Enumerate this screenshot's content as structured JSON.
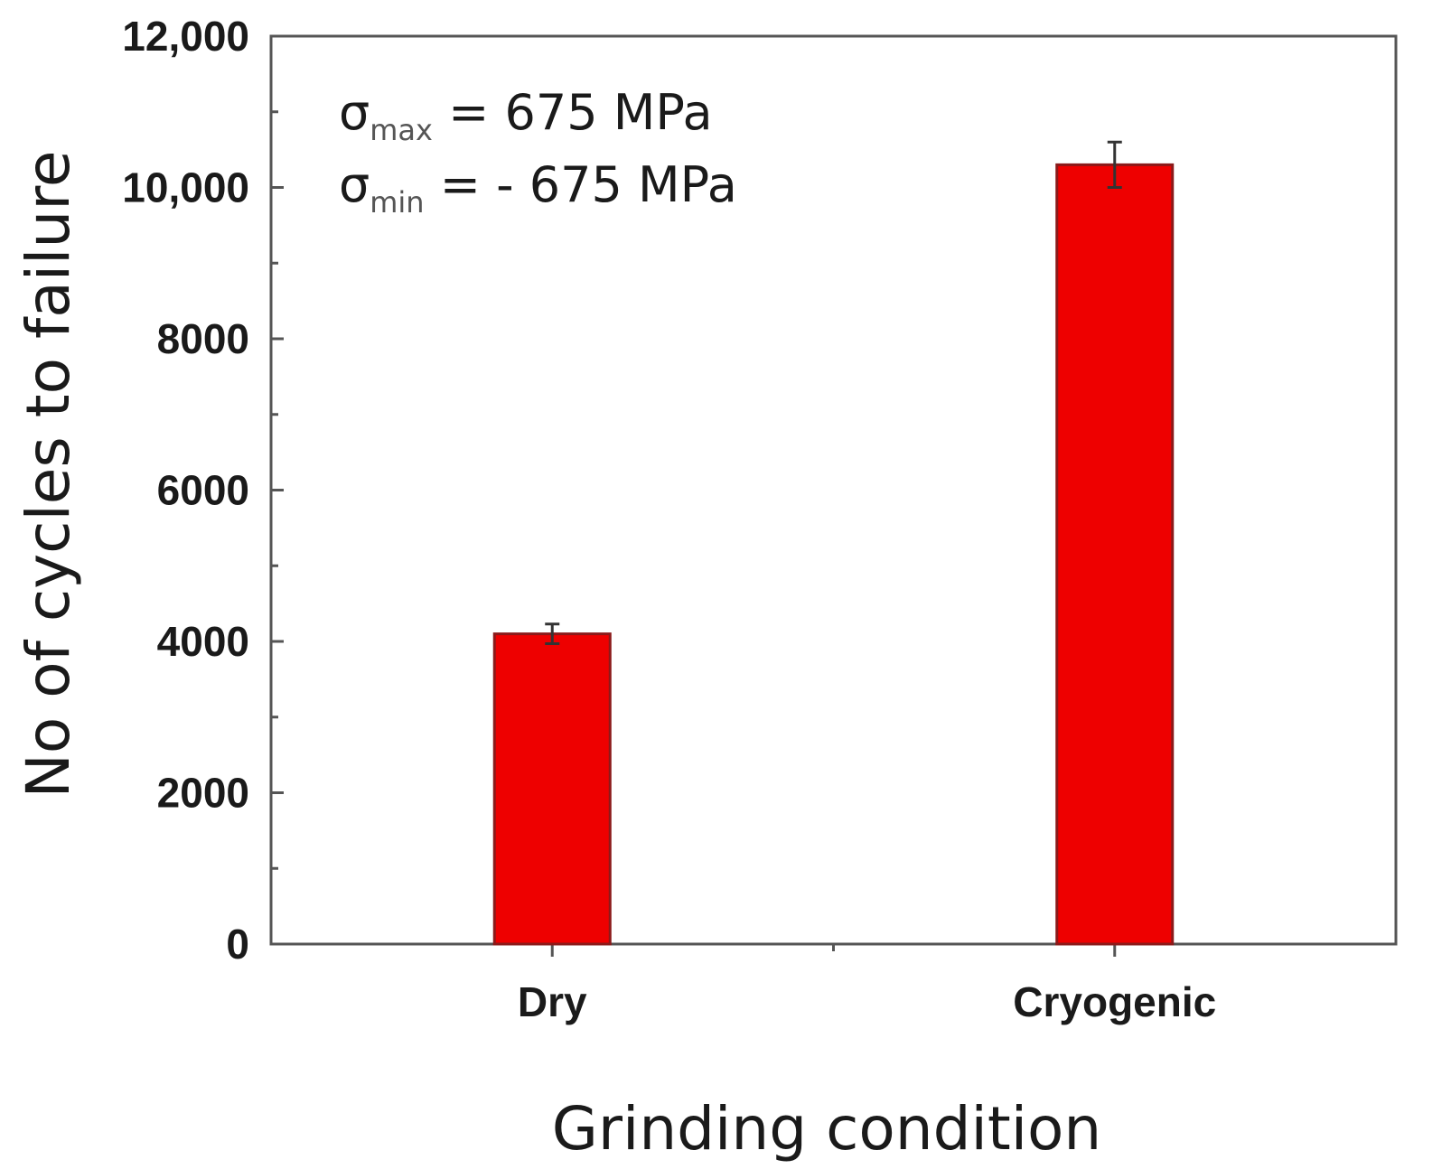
{
  "chart_data": {
    "type": "bar",
    "categories": [
      "Dry",
      "Cryogenic"
    ],
    "values": [
      4100,
      10300
    ],
    "error": [
      130,
      300
    ],
    "xlabel": "Grinding condition",
    "ylabel": "No of cycles to failure",
    "ylim": [
      0,
      12000
    ],
    "yticks": [
      0,
      2000,
      4000,
      6000,
      8000,
      10000,
      12000
    ],
    "ytick_labels": [
      "0",
      "2000",
      "4000",
      "6000",
      "8000",
      "10,000",
      "12,000"
    ],
    "bar_color": "#ee0000",
    "bar_edge_color": "#8b1a1a",
    "grid": false,
    "legend": false,
    "annotations": [
      {
        "symbol": "σ",
        "sub": "max",
        "text": " = 675 MPa"
      },
      {
        "symbol": "σ",
        "sub": "min",
        "text": "  = - 675 MPa"
      }
    ]
  }
}
